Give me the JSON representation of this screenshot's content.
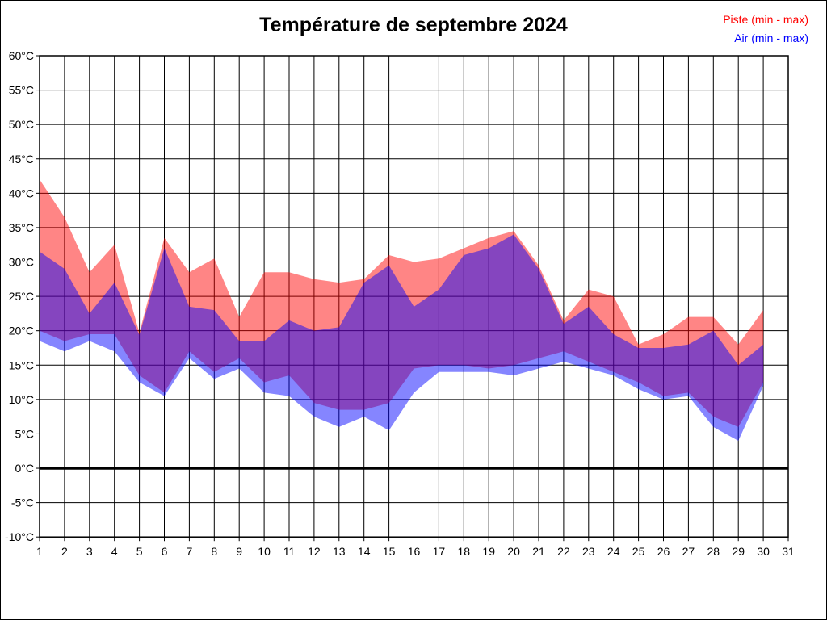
{
  "title": "Température de septembre 2024",
  "legend": {
    "piste_label": "Piste (min - max)",
    "air_label": "Air (min - max)",
    "piste_color": "#FF0000",
    "air_color": "#0000FF"
  },
  "chart_data": {
    "type": "area",
    "subtype": "two overlapping min-max range bands (overlap renders purple)",
    "title": "Température de septembre 2024",
    "month_days": [
      1,
      2,
      3,
      4,
      5,
      6,
      7,
      8,
      9,
      10,
      11,
      12,
      13,
      14,
      15,
      16,
      17,
      18,
      19,
      20,
      21,
      22,
      23,
      24,
      25,
      26,
      27,
      28,
      29,
      30
    ],
    "x_axis_tick_labels": [
      "1",
      "2",
      "3",
      "4",
      "5",
      "6",
      "7",
      "8",
      "9",
      "10",
      "11",
      "12",
      "13",
      "14",
      "15",
      "16",
      "17",
      "18",
      "19",
      "20",
      "21",
      "22",
      "23",
      "24",
      "25",
      "26",
      "27",
      "28",
      "29",
      "30",
      "31"
    ],
    "y_axis_tick_labels": [
      "60°C",
      "55°C",
      "50°C",
      "45°C",
      "40°C",
      "35°C",
      "30°C",
      "25°C",
      "20°C",
      "15°C",
      "10°C",
      "5°C",
      "0°C",
      "-5°C",
      "-10°C"
    ],
    "y_axis_tick_values": [
      60,
      55,
      50,
      45,
      40,
      35,
      30,
      25,
      20,
      15,
      10,
      5,
      0,
      -5,
      -10
    ],
    "xlim": [
      1,
      31
    ],
    "ylim": [
      -10,
      60
    ],
    "grid": true,
    "zero_line": {
      "value": 0,
      "stroke_width": 3.5
    },
    "series": [
      {
        "name": "Piste (min - max)",
        "color": "#FF0000",
        "fill_opacity": 0.48,
        "min": [
          20,
          18.5,
          19.5,
          19.5,
          13.5,
          11,
          17,
          14,
          16,
          12.5,
          13.5,
          9.5,
          8.5,
          8.5,
          9.5,
          14.5,
          15,
          15,
          14.5,
          15,
          16,
          17,
          15.5,
          14,
          12.5,
          10.5,
          11,
          7.5,
          6,
          12.5
        ],
        "max": [
          42,
          36.5,
          28.5,
          32.5,
          19.7,
          33.5,
          28.5,
          30.5,
          22,
          28.5,
          28.5,
          27.5,
          27,
          27.5,
          31,
          30,
          30.5,
          32,
          33.5,
          34.5,
          29.5,
          21.5,
          26,
          25,
          18,
          19.5,
          22,
          22,
          18,
          23
        ]
      },
      {
        "name": "Air (min - max)",
        "color": "#0000FF",
        "fill_opacity": 0.48,
        "min": [
          18.5,
          17,
          18.5,
          17,
          12.5,
          10.5,
          16,
          13,
          14.5,
          11,
          10.5,
          7.5,
          6,
          7.5,
          5.5,
          11,
          14,
          14,
          14,
          13.5,
          14.5,
          15.5,
          14.5,
          13.5,
          11.5,
          10,
          10.5,
          6,
          4,
          12
        ],
        "max": [
          31.5,
          29,
          22.5,
          27,
          19.4,
          32,
          23.5,
          23,
          18.5,
          18.5,
          21.5,
          20,
          20.5,
          27,
          29.5,
          23.5,
          26,
          31,
          32,
          34,
          29,
          21,
          23.5,
          19.5,
          17.5,
          17.5,
          18,
          20,
          15,
          18
        ]
      }
    ],
    "legend_position": "top-right"
  }
}
